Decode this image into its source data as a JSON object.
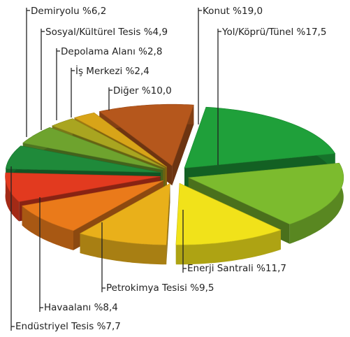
{
  "chart_data": {
    "type": "pie",
    "categories": [
      "Konut",
      "Yol/Köprü/Tünel",
      "Enerji Santrali",
      "Petrokimya Tesisi",
      "Havaalanı",
      "Endüstriyel Tesis",
      "Demiryolu",
      "Sosyal/Kültürel Tesis",
      "Depolama Alanı",
      "İş Merkezi",
      "Diğer"
    ],
    "values": [
      19.0,
      17.5,
      11.7,
      9.5,
      8.4,
      7.7,
      6.2,
      4.9,
      2.8,
      2.4,
      10.0
    ],
    "value_labels": [
      "%19,0",
      "%17,5",
      "%11,7",
      "%9,5",
      "%8,4",
      "%7,7",
      "%6,2",
      "%4,9",
      "%2,8",
      "%2,4",
      "%10,0"
    ],
    "colors": [
      "#1fa03a",
      "#7cbb2e",
      "#f1e21a",
      "#e9b01a",
      "#ea7a1a",
      "#e23a1f",
      "#1f8a3a",
      "#6ea32e",
      "#a9a520",
      "#d8a418",
      "#b5571c"
    ]
  }
}
